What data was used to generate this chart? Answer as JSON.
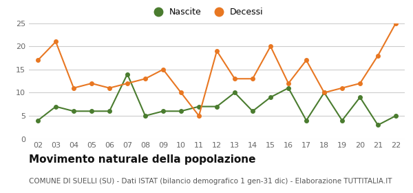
{
  "years": [
    2,
    3,
    4,
    5,
    6,
    7,
    8,
    9,
    10,
    11,
    12,
    13,
    14,
    15,
    16,
    17,
    18,
    19,
    20,
    21,
    22
  ],
  "nascite": [
    4,
    7,
    6,
    6,
    6,
    14,
    5,
    6,
    6,
    7,
    7,
    10,
    6,
    9,
    11,
    4,
    10,
    4,
    9,
    3,
    5
  ],
  "decessi": [
    17,
    21,
    11,
    12,
    11,
    12,
    13,
    15,
    10,
    5,
    19,
    13,
    13,
    20,
    12,
    17,
    10,
    11,
    12,
    18,
    25
  ],
  "nascite_color": "#4a7c2f",
  "decessi_color": "#e87722",
  "title": "Movimento naturale della popolazione",
  "subtitle": "COMUNE DI SUELLI (SU) - Dati ISTAT (bilancio demografico 1 gen-31 dic) - Elaborazione TUTTITALIA.IT",
  "legend_nascite": "Nascite",
  "legend_decessi": "Decessi",
  "ylim": [
    0,
    25
  ],
  "yticks": [
    0,
    5,
    10,
    15,
    20,
    25
  ],
  "background_color": "#ffffff",
  "grid_color": "#cccccc",
  "title_fontsize": 11,
  "subtitle_fontsize": 7.5,
  "legend_fontsize": 9,
  "tick_fontsize": 8
}
